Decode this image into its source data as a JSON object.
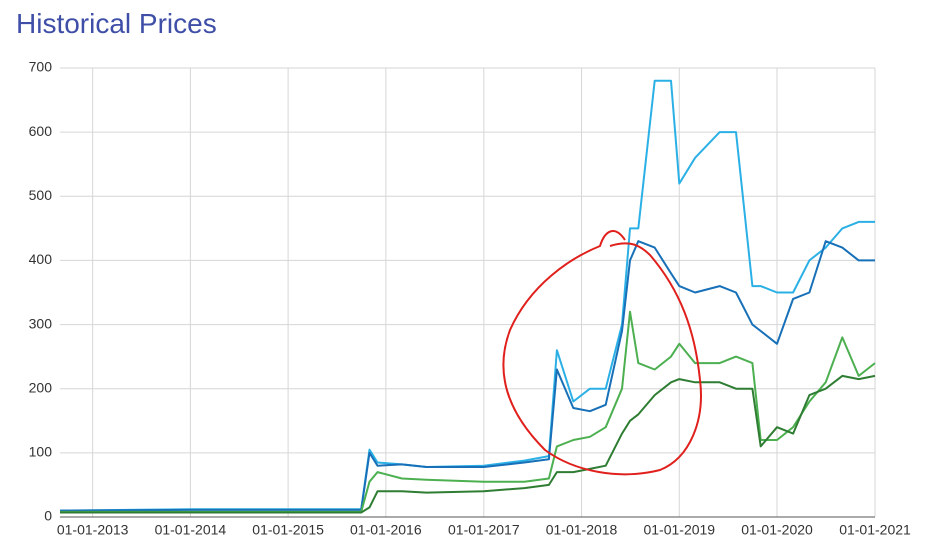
{
  "chart_data": {
    "type": "line",
    "title": "Historical Prices",
    "x": [
      "01-09-2012",
      "01-01-2014",
      "01-01-2015",
      "01-10-2015",
      "01-11-2015",
      "01-12-2015",
      "01-03-2016",
      "01-06-2016",
      "01-01-2017",
      "01-06-2017",
      "01-09-2017",
      "01-10-2017",
      "01-12-2017",
      "01-02-2018",
      "01-04-2018",
      "01-06-2018",
      "01-07-2018",
      "01-08-2018",
      "01-10-2018",
      "01-12-2018",
      "01-01-2019",
      "01-03-2019",
      "01-06-2019",
      "01-08-2019",
      "01-10-2019",
      "01-11-2019",
      "01-01-2020",
      "01-03-2020",
      "01-05-2020",
      "01-07-2020",
      "01-09-2020",
      "01-11-2020",
      "01-01-2021"
    ],
    "series": [
      {
        "color": "#2bb0e6",
        "values": [
          10,
          12,
          12,
          12,
          105,
          85,
          82,
          78,
          80,
          88,
          95,
          260,
          180,
          200,
          200,
          300,
          450,
          450,
          680,
          680,
          520,
          560,
          600,
          600,
          360,
          360,
          350,
          350,
          400,
          420,
          450,
          460,
          460
        ]
      },
      {
        "color": "#1770b8",
        "values": [
          10,
          11,
          11,
          11,
          100,
          80,
          82,
          78,
          78,
          85,
          90,
          230,
          170,
          165,
          175,
          290,
          400,
          430,
          420,
          380,
          360,
          350,
          360,
          350,
          300,
          290,
          270,
          340,
          350,
          430,
          420,
          400,
          400
        ]
      },
      {
        "color": "#4caf50",
        "values": [
          8,
          8,
          8,
          8,
          55,
          70,
          60,
          58,
          55,
          55,
          60,
          110,
          120,
          125,
          140,
          200,
          320,
          240,
          230,
          250,
          270,
          240,
          240,
          250,
          240,
          120,
          120,
          140,
          180,
          210,
          280,
          220,
          240
        ]
      },
      {
        "color": "#2e7d32",
        "values": [
          7,
          7,
          7,
          7,
          15,
          40,
          40,
          38,
          40,
          45,
          50,
          70,
          70,
          75,
          80,
          130,
          150,
          160,
          190,
          210,
          215,
          210,
          210,
          200,
          200,
          110,
          140,
          130,
          190,
          200,
          220,
          215,
          220
        ]
      }
    ],
    "xlim": [
      "01-09-2012",
      "01-01-2021"
    ],
    "xticks": [
      "01-01-2013",
      "01-01-2014",
      "01-01-2015",
      "01-01-2016",
      "01-01-2017",
      "01-01-2018",
      "01-01-2019",
      "01-01-2020",
      "01-01-2021"
    ],
    "ylim": [
      0,
      700
    ],
    "yticks": [
      0,
      100,
      200,
      300,
      400,
      500,
      600,
      700
    ],
    "grid": true
  }
}
